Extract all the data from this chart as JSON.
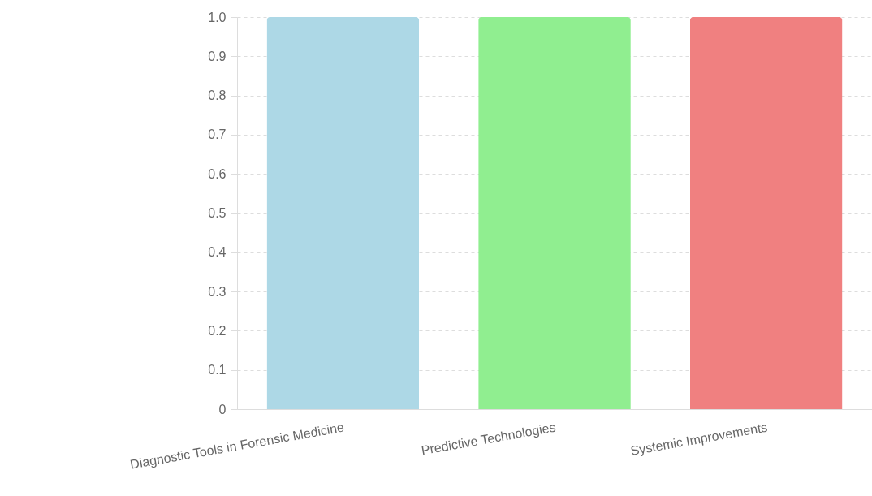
{
  "chart_data": {
    "type": "bar",
    "categories": [
      "Diagnostic Tools in Forensic Medicine",
      "Predictive Technologies",
      "Systemic Improvements"
    ],
    "values": [
      1.0,
      1.0,
      1.0
    ],
    "colors": [
      "#add8e6",
      "#90ee90",
      "#f08080"
    ],
    "ylim": [
      0,
      1
    ],
    "yticks": [
      0,
      0.1,
      0.2,
      0.3,
      0.4,
      0.5,
      0.6,
      0.7,
      0.8,
      0.9,
      {
        "value": 1,
        "label": "1.0"
      }
    ],
    "grid": "y"
  }
}
